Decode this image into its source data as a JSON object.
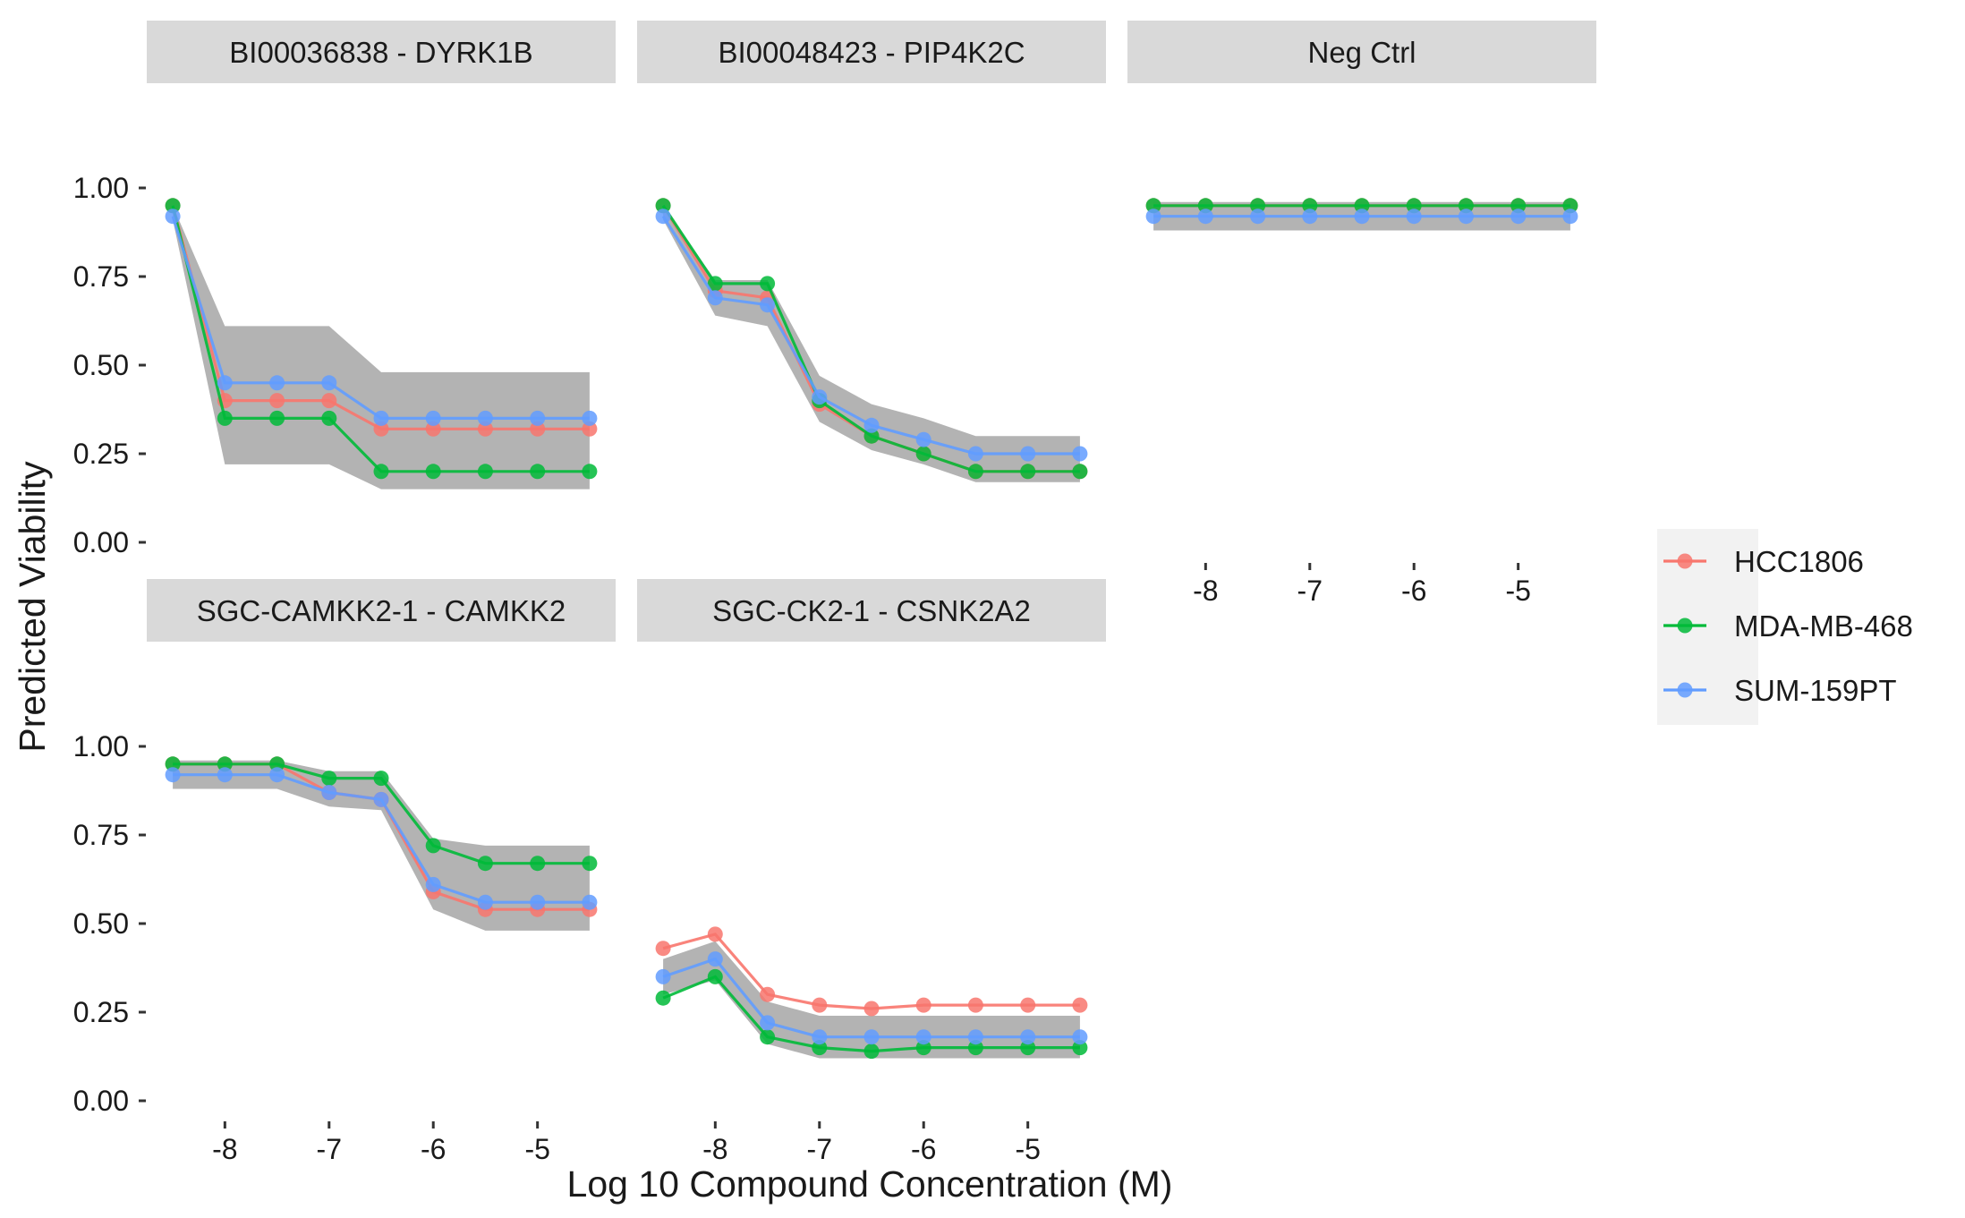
{
  "chart_data": {
    "type": "line",
    "xlabel": "Log 10 Compound Concentration (M)",
    "ylabel": "Predicted Viability",
    "ylim": [
      0,
      1
    ],
    "yticks": [
      0.0,
      0.25,
      0.5,
      0.75,
      1.0
    ],
    "ytick_labels": [
      "0.00",
      "0.25",
      "0.50",
      "0.75",
      "1.00"
    ],
    "xticks": [
      -8,
      -7,
      -6,
      -5
    ],
    "xtick_labels": [
      "-8",
      "-7",
      "-6",
      "-5"
    ],
    "x": [
      -8.5,
      -8.0,
      -7.5,
      -7.0,
      -6.5,
      -6.0,
      -5.5,
      -5.0,
      -4.5
    ],
    "legend": {
      "position": "right",
      "entries": [
        {
          "name": "HCC1806",
          "color": "#F8766D"
        },
        {
          "name": "MDA-MB-468",
          "color": "#00BA38"
        },
        {
          "name": "SUM-159PT",
          "color": "#619CFF"
        }
      ]
    },
    "ribbon_color": "#B3B3B3",
    "facets": [
      {
        "title": "BI00036838 - DYRK1B",
        "x": [
          -8.5,
          -8.0,
          -7.5,
          -7.0,
          -6.5,
          -6.0,
          -5.5,
          -5.0,
          -4.5
        ],
        "ribbon_low": [
          0.91,
          0.22,
          0.22,
          0.22,
          0.15,
          0.15,
          0.15,
          0.15,
          0.15
        ],
        "ribbon_high": [
          0.95,
          0.61,
          0.61,
          0.61,
          0.48,
          0.48,
          0.48,
          0.48,
          0.48
        ],
        "series": [
          {
            "name": "HCC1806",
            "values": [
              0.95,
              0.4,
              0.4,
              0.4,
              0.32,
              0.32,
              0.32,
              0.32,
              0.32
            ]
          },
          {
            "name": "MDA-MB-468",
            "values": [
              0.95,
              0.35,
              0.35,
              0.35,
              0.2,
              0.2,
              0.2,
              0.2,
              0.2
            ]
          },
          {
            "name": "SUM-159PT",
            "values": [
              0.92,
              0.45,
              0.45,
              0.45,
              0.35,
              0.35,
              0.35,
              0.35,
              0.35
            ]
          }
        ]
      },
      {
        "title": "BI00048423 - PIP4K2C",
        "x": [
          -8.5,
          -8.0,
          -7.5,
          -7.0,
          -6.5,
          -6.0,
          -5.5,
          -5.0,
          -4.5
        ],
        "ribbon_low": [
          0.91,
          0.64,
          0.61,
          0.34,
          0.26,
          0.22,
          0.17,
          0.17,
          0.17
        ],
        "ribbon_high": [
          0.95,
          0.74,
          0.74,
          0.47,
          0.39,
          0.35,
          0.3,
          0.3,
          0.3
        ],
        "series": [
          {
            "name": "HCC1806",
            "values": [
              0.95,
              0.71,
              0.69,
              0.39,
              0.3,
              0.25,
              0.2,
              0.2,
              0.2
            ]
          },
          {
            "name": "MDA-MB-468",
            "values": [
              0.95,
              0.73,
              0.73,
              0.4,
              0.3,
              0.25,
              0.2,
              0.2,
              0.2
            ]
          },
          {
            "name": "SUM-159PT",
            "values": [
              0.92,
              0.69,
              0.67,
              0.41,
              0.33,
              0.29,
              0.25,
              0.25,
              0.25
            ]
          }
        ]
      },
      {
        "title": "Neg Ctrl",
        "x": [
          -8.5,
          -8.0,
          -7.5,
          -7.0,
          -6.5,
          -6.0,
          -5.5,
          -5.0,
          -4.5
        ],
        "ribbon_low": [
          0.88,
          0.88,
          0.88,
          0.88,
          0.88,
          0.88,
          0.88,
          0.88,
          0.88
        ],
        "ribbon_high": [
          0.96,
          0.96,
          0.96,
          0.96,
          0.96,
          0.96,
          0.96,
          0.96,
          0.96
        ],
        "series": [
          {
            "name": "HCC1806",
            "values": [
              0.95,
              0.95,
              0.95,
              0.95,
              0.95,
              0.95,
              0.95,
              0.95,
              0.95
            ]
          },
          {
            "name": "MDA-MB-468",
            "values": [
              0.95,
              0.95,
              0.95,
              0.95,
              0.95,
              0.95,
              0.95,
              0.95,
              0.95
            ]
          },
          {
            "name": "SUM-159PT",
            "values": [
              0.92,
              0.92,
              0.92,
              0.92,
              0.92,
              0.92,
              0.92,
              0.92,
              0.92
            ]
          }
        ]
      },
      {
        "title": "SGC-CAMKK2-1 - CAMKK2",
        "x": [
          -8.5,
          -8.0,
          -7.5,
          -7.0,
          -6.5,
          -6.0,
          -5.5,
          -5.0,
          -4.5
        ],
        "ribbon_low": [
          0.88,
          0.88,
          0.88,
          0.83,
          0.82,
          0.54,
          0.48,
          0.48,
          0.48
        ],
        "ribbon_high": [
          0.96,
          0.96,
          0.96,
          0.93,
          0.93,
          0.74,
          0.72,
          0.72,
          0.72
        ],
        "series": [
          {
            "name": "HCC1806",
            "values": [
              0.95,
              0.95,
              0.95,
              0.87,
              0.85,
              0.59,
              0.54,
              0.54,
              0.54
            ]
          },
          {
            "name": "MDA-MB-468",
            "values": [
              0.95,
              0.95,
              0.95,
              0.91,
              0.91,
              0.72,
              0.67,
              0.67,
              0.67
            ]
          },
          {
            "name": "SUM-159PT",
            "values": [
              0.92,
              0.92,
              0.92,
              0.87,
              0.85,
              0.61,
              0.56,
              0.56,
              0.56
            ]
          }
        ]
      },
      {
        "title": "SGC-CK2-1 - CSNK2A2",
        "x": [
          -8.5,
          -8.0,
          -7.5,
          -7.0,
          -6.5,
          -6.0,
          -5.5,
          -5.0,
          -4.5
        ],
        "ribbon_low": [
          0.3,
          0.34,
          0.16,
          0.12,
          0.12,
          0.12,
          0.12,
          0.12,
          0.12
        ],
        "ribbon_high": [
          0.4,
          0.45,
          0.28,
          0.24,
          0.24,
          0.24,
          0.24,
          0.24,
          0.24
        ],
        "series": [
          {
            "name": "HCC1806",
            "values": [
              0.43,
              0.47,
              0.3,
              0.27,
              0.26,
              0.27,
              0.27,
              0.27,
              0.27
            ]
          },
          {
            "name": "MDA-MB-468",
            "values": [
              0.29,
              0.35,
              0.18,
              0.15,
              0.14,
              0.15,
              0.15,
              0.15,
              0.15
            ]
          },
          {
            "name": "SUM-159PT",
            "values": [
              0.35,
              0.4,
              0.22,
              0.18,
              0.18,
              0.18,
              0.18,
              0.18,
              0.18
            ]
          }
        ]
      }
    ]
  }
}
